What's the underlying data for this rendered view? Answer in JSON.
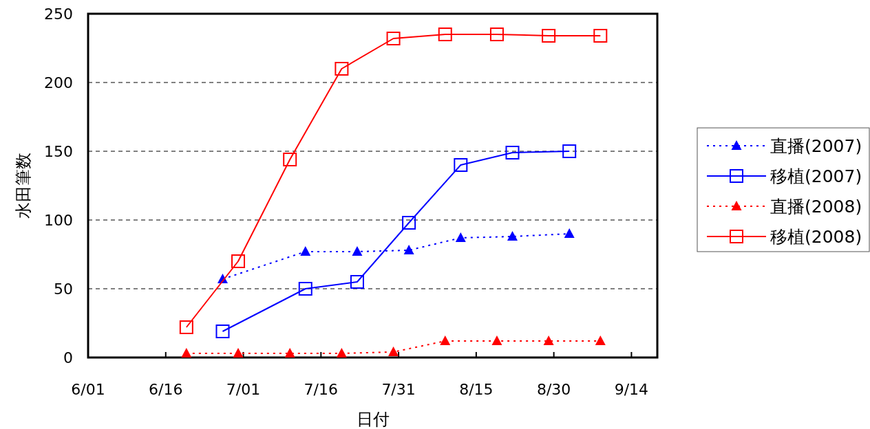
{
  "chart_data": {
    "type": "line",
    "xlabel": "日付",
    "ylabel": "水田筆数",
    "grid": "y",
    "legend": "right",
    "xlim": [
      "--06-01",
      "--09-19"
    ],
    "xticks": [
      {
        "value": "--06-01",
        "label": "6/01"
      },
      {
        "value": "--06-16",
        "label": "6/16"
      },
      {
        "value": "--07-01",
        "label": "7/01"
      },
      {
        "value": "--07-16",
        "label": "7/16"
      },
      {
        "value": "--07-31",
        "label": "7/31"
      },
      {
        "value": "--08-15",
        "label": "8/15"
      },
      {
        "value": "--08-30",
        "label": "8/30"
      },
      {
        "value": "--09-14",
        "label": "9/14"
      }
    ],
    "ylim": [
      0,
      250
    ],
    "yticks": [
      0,
      50,
      100,
      150,
      200,
      250
    ],
    "series": [
      {
        "name": "直播(2007)",
        "color": "#0000ff",
        "marker": "triangle",
        "line_style": "dotted",
        "x": [
          "--06-27",
          "--07-13",
          "--07-23",
          "--08-02",
          "--08-12",
          "--08-22",
          "--09-02"
        ],
        "values": [
          57,
          77,
          77,
          78,
          87,
          88,
          90
        ]
      },
      {
        "name": "移植(2007)",
        "color": "#0000ff",
        "marker": "square",
        "line_style": "solid",
        "x": [
          "--06-27",
          "--07-13",
          "--07-23",
          "--08-02",
          "--08-12",
          "--08-22",
          "--09-02"
        ],
        "values": [
          19,
          50,
          55,
          98,
          140,
          149,
          150
        ]
      },
      {
        "name": "直播(2008)",
        "color": "#ff0000",
        "marker": "triangle",
        "line_style": "dotted",
        "x": [
          "--06-20",
          "--06-30",
          "--07-10",
          "--07-20",
          "--07-30",
          "--08-09",
          "--08-19",
          "--08-29",
          "--09-08"
        ],
        "values": [
          3,
          3,
          3,
          3,
          4,
          12,
          12,
          12,
          12
        ]
      },
      {
        "name": "移植(2008)",
        "color": "#ff0000",
        "marker": "square",
        "line_style": "solid",
        "x": [
          "--06-20",
          "--06-30",
          "--07-10",
          "--07-20",
          "--07-30",
          "--08-09",
          "--08-19",
          "--08-29",
          "--09-08"
        ],
        "values": [
          22,
          70,
          144,
          210,
          232,
          235,
          235,
          234,
          234
        ]
      }
    ]
  }
}
